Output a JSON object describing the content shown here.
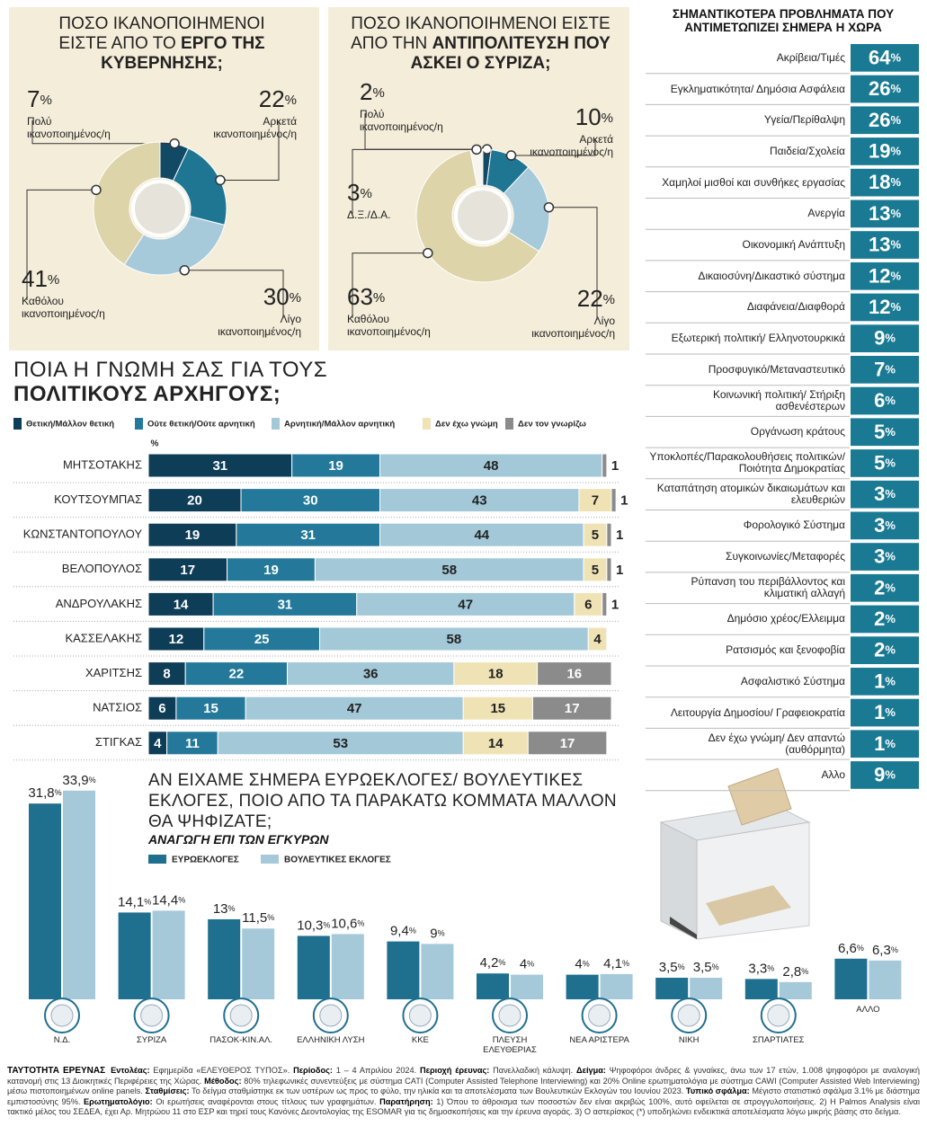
{
  "chart_data": [
    {
      "type": "pie",
      "title": "ΠΟΣΟ ΙΚΑΝΟΠΟΙΗΜΕΝΟΙ ΕΙΣΤΕ ΑΠΟ ΤΟ",
      "title_bold": "ΕΡΓΟ ΤΗΣ ΚΥΒΕΡΝΗΣΗΣ;",
      "unit": "%",
      "categories": [
        "Πολύ ικανοποιημένος/η",
        "Αρκετά ικανοποιημένος/η",
        "Λίγο ικανοποιημένος/η",
        "Καθόλου ικανοποιημένος/η"
      ],
      "values": [
        7,
        22,
        30,
        41
      ],
      "colors": [
        "#124a66",
        "#1f7693",
        "#a7cadb",
        "#ddd5a9"
      ]
    },
    {
      "type": "pie",
      "title": "ΠΟΣΟ ΙΚΑΝΟΠΟΙΗΜΕΝΟΙ ΕΙΣΤΕ ΑΠΟ ΤΗΝ",
      "title_bold": "ΑΝΤΙΠΟΛΙΤΕΥΣΗ ΠΟΥ ΑΣΚΕΙ Ο ΣΥΡΙΖΑ;",
      "unit": "%",
      "categories": [
        "Πολύ ικανοποιημένος/η",
        "Αρκετά ικανοποιημένος/η",
        "Λίγο ικανοποιημένος/η",
        "Καθόλου ικανοποιημένος/η",
        "Δ.Ξ./Δ.Α."
      ],
      "values": [
        2,
        10,
        22,
        63,
        3
      ],
      "colors": [
        "#124a66",
        "#1f7693",
        "#a7cadb",
        "#ddd5a9",
        "#f7f5ee"
      ]
    },
    {
      "type": "bar",
      "orientation": "horizontal",
      "stacked": true,
      "title": "ΠΟΙΑ Η ΓΝΩΜΗ ΣΑΣ ΓΙΑ ΤΟΥΣ",
      "title_bold": "ΠΟΛΙΤΙΚΟΥΣ ΑΡΧΗΓΟΥΣ;",
      "x_label": "%",
      "xlim": [
        0,
        100
      ],
      "categories": [
        "ΜΗΤΣΟΤΑΚΗΣ",
        "ΚΟΥΤΣΟΥΜΠΑΣ",
        "ΚΩΝΣΤΑΝΤΟΠΟΥΛΟΥ",
        "ΒΕΛΟΠΟΥΛΟΣ",
        "ΑΝΔΡΟΥΛΑΚΗΣ",
        "ΚΑΣΣΕΛΑΚΗΣ",
        "ΧΑΡΙΤΣΗΣ",
        "ΝΑΤΣΙΟΣ",
        "ΣΤΙΓΚΑΣ"
      ],
      "series": [
        {
          "name": "Θετική/Μάλλον θετική",
          "color": "#0e3d57",
          "values": [
            31,
            20,
            19,
            17,
            14,
            12,
            8,
            6,
            4
          ]
        },
        {
          "name": "Ούτε θετική/Ούτε αρνητική",
          "color": "#24799b",
          "values": [
            19,
            30,
            31,
            19,
            31,
            25,
            22,
            15,
            11
          ]
        },
        {
          "name": "Αρνητική/Μάλλον αρνητική",
          "color": "#a3c8d8",
          "values": [
            48,
            43,
            44,
            58,
            47,
            58,
            36,
            47,
            53
          ]
        },
        {
          "name": "Δεν έχω γνώμη",
          "color": "#efe3b6",
          "values": [
            null,
            7,
            5,
            5,
            6,
            4,
            18,
            15,
            14
          ]
        },
        {
          "name": "Δεν τον γνωρίζω",
          "color": "#8b8b8b",
          "values": [
            1,
            1,
            1,
            1,
            1,
            null,
            16,
            17,
            17
          ]
        }
      ]
    },
    {
      "type": "ranking",
      "title": "ΣΗΜΑΝΤΙΚΟΤΕΡΑ ΠΡΟΒΛΗΜΑΤΑ ΠΟΥ ΑΝΤΙΜΕΤΩΠΙΖΕΙ ΣΗΜΕΡΑ Η ΧΩΡΑ",
      "unit": "%",
      "color": "#1a7a93",
      "categories": [
        "Ακρίβεια/Τιμές",
        "Εγκληματικότητα/ Δημόσια Ασφάλεια",
        "Υγεία/Περίθαλψη",
        "Παιδεία/Σχολεία",
        "Χαμηλοί μισθοί και συνθήκες εργασίας",
        "Ανεργία",
        "Οικονομική Ανάπτυξη",
        "Δικαιοσύνη/Δικαστικό σύστημα",
        "Διαφάνεια/Διαφθορά",
        "Εξωτερική πολιτική/ Ελληνοτουρκικά",
        "Προσφυγικό/Μεταναστευτικό",
        "Κοινωνική πολιτική/ Στήριξη ασθενέστερων",
        "Οργάνωση κράτους",
        "Υποκλοπές/Παρακολουθήσεις πολιτικών/ Ποιότητα Δημοκρατίας",
        "Καταπάτηση ατομικών δικαιωμάτων και ελευθεριών",
        "Φορολογικό Σύστημα",
        "Συγκοινωνίες/Μεταφορές",
        "Ρύπανση του περιβάλλοντος και κλιματική αλλαγή",
        "Δημόσιο χρέος/Ελλειμμα",
        "Ρατσισμός και ξενοφοβία",
        "Ασφαλιστικό Σύστημα",
        "Λειτουργία Δημοσίου/ Γραφειοκρατία",
        "Δεν έχω γνώμη/ Δεν απαντώ (αυθόρμητα)",
        "Αλλο"
      ],
      "values": [
        64,
        26,
        26,
        19,
        18,
        13,
        13,
        12,
        12,
        9,
        7,
        6,
        5,
        5,
        3,
        3,
        3,
        2,
        2,
        2,
        1,
        1,
        1,
        9
      ]
    },
    {
      "type": "bar",
      "orientation": "vertical",
      "title": "ΑΝ ΕΙΧΑΜΕ ΣΗΜΕΡΑ ΕΥΡΩΕΚΛΟΓΕΣ/ ΒΟΥΛΕΥΤΙΚΕΣ ΕΚΛΟΓΕΣ, ΠΟΙΟ ΑΠΟ ΤΑ ΠΑΡΑΚΑΤΩ ΚΟΜΜΑΤΑ ΜΑΛΛΟΝ ΘΑ ΨΗΦΙΖΑΤΕ;",
      "subtitle": "ΑΝΑΓΩΓΗ ΕΠΙ ΤΩΝ ΕΓΚΥΡΩΝ",
      "unit": "%",
      "categories": [
        "Ν.Δ.",
        "ΣΥΡΙΖΑ",
        "ΠΑΣΟΚ-ΚΙΝ.ΑΛ.",
        "ΕΛΛΗΝΙΚΗ ΛΥΣΗ",
        "ΚΚΕ",
        "ΠΛΕΥΣΗ ΕΛΕΥΘΕΡΙΑΣ",
        "ΝΕΑ ΑΡΙΣΤΕΡΑ",
        "ΝΙΚΗ",
        "ΣΠΑΡΤΙΑΤΕΣ",
        "ΑΛΛΟ"
      ],
      "series": [
        {
          "name": "ΕΥΡΩΕΚΛΟΓΕΣ",
          "color": "#1f6f8f",
          "values": [
            31.8,
            14.1,
            13,
            10.3,
            9.4,
            4.2,
            4,
            3.5,
            3.3,
            6.6
          ],
          "value_labels": [
            "31,8",
            "14,1",
            "13",
            "10,3",
            "9,4",
            "4,2",
            "4",
            "3,5",
            "3,3",
            "6,6"
          ]
        },
        {
          "name": "ΒΟΥΛΕΥΤΙΚΕΣ ΕΚΛΟΓΕΣ",
          "color": "#a6c9d9",
          "values": [
            33.9,
            14.4,
            11.5,
            10.6,
            9,
            4,
            4.1,
            3.5,
            2.8,
            6.3
          ],
          "value_labels": [
            "33,9",
            "14,4",
            "11,5",
            "10,6",
            "9",
            "4",
            "4,1",
            "3,5",
            "2,8",
            "6,3"
          ]
        }
      ]
    }
  ],
  "footer": {
    "title": "ΤΑΥΤΟΤΗΤΑ ΕΡΕΥΝΑΣ",
    "items": [
      {
        "label": "Εντολέας:",
        "text": "Εφημερίδα «ΕΛΕΥΘΕΡΟΣ ΤΥΠΟΣ»."
      },
      {
        "label": "Περίοδος:",
        "text": "1 – 4 Απριλίου 2024."
      },
      {
        "label": "Περιοχή έρευνας:",
        "text": "Πανελλαδική κάλυψη."
      },
      {
        "label": "Δείγμα:",
        "text": "Ψηφοφόροι άνδρες & γυναίκες, άνω των 17 ετών, 1.008 ψηφοφόροι με αναλογική κατανομή στις 13 Διοικητικές Περιφέρειες της Χώρας."
      },
      {
        "label": "Μέθοδος:",
        "text": "80% τηλεφωνικές συνεντεύξεις με σύστημα CATI (Computer Assisted Telephone Interviewing) και 20% Online ερωτηματολόγια με σύστημα CAWI (Computer Assisted Web Interviewing) μέσω πιστοποιημένων online panels."
      },
      {
        "label": "Σταθμίσεις:",
        "text": "Το δείγμα σταθμίστηκε εκ των υστέρων ως προς το φύλο, την ηλικία και τα αποτελέσματα των Βουλευτικών Εκλογών του Ιουνίου 2023."
      },
      {
        "label": "Τυπικό σφάλμα:",
        "text": "Μέγιστο στατιστικό σφάλμα 3.1% με διάστημα εμπιστοσύνης 95%."
      },
      {
        "label": "Ερωτηματολόγιο:",
        "text": "Οι ερωτήσεις αναφέρονται στους τίτλους των γραφημάτων."
      },
      {
        "label": "Παρατήρηση:",
        "text": "1) Όπου το άθροισμα των ποσοστών δεν είναι ακριβώς 100%, αυτό οφείλεται σε στρογγυλοποιήσεις. 2) Η Palmos Analysis είναι τακτικό μέλος του ΣΕΔΕΑ, έχει Αρ. Μητρώου 11 στο ΕΣΡ και τηρεί τους Κανόνες Δεοντολογίας της ESOMAR για τις δημοσκοπήσεις και την έρευνα αγοράς. 3) Ο αστερίσκος (*) υποδηλώνει ενδεικτικά αποτελέσματα λόγω μικρής βάσης στο δείγμα."
      }
    ]
  }
}
